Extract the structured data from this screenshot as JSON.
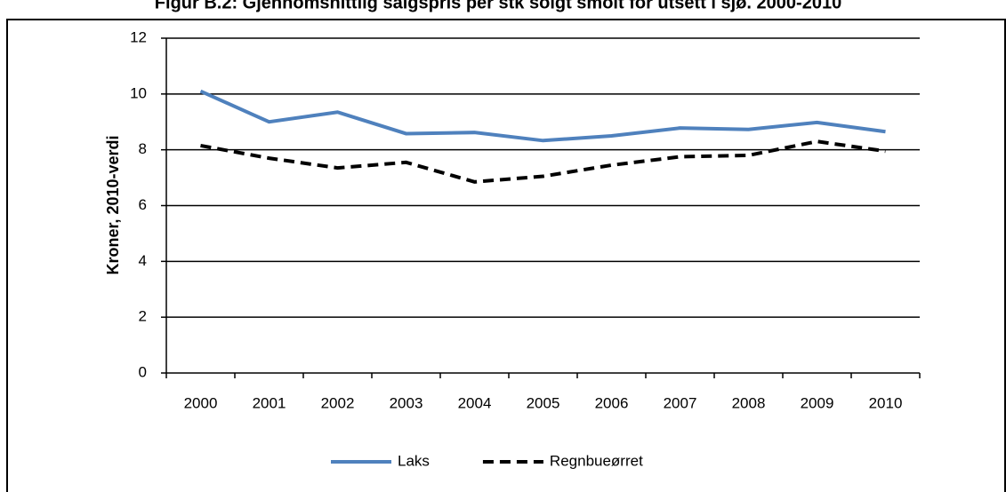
{
  "chart_data": {
    "type": "line",
    "title": "Figur B.2: Gjennomsnittlig salgspris per stk solgt smolt for utsett i sjø. 2000-2010",
    "ylabel": "Kroner, 2010-verdi",
    "categories": [
      "2000",
      "2001",
      "2002",
      "2003",
      "2004",
      "2005",
      "2006",
      "2007",
      "2008",
      "2009",
      "2010"
    ],
    "series": [
      {
        "name": "Laks",
        "color": "#4f81bd",
        "dash": false,
        "values": [
          10.1,
          9.0,
          9.35,
          8.58,
          8.62,
          8.33,
          8.5,
          8.78,
          8.73,
          8.98,
          8.65
        ]
      },
      {
        "name": "Regnbueørret",
        "color": "#000000",
        "dash": true,
        "values": [
          8.15,
          7.7,
          7.35,
          7.55,
          6.85,
          7.05,
          7.45,
          7.75,
          7.8,
          8.3,
          7.95
        ]
      }
    ],
    "ylim": [
      0,
      12
    ],
    "yticks": [
      0,
      2,
      4,
      6,
      8,
      10,
      12
    ],
    "grid": true,
    "legend": "bottom"
  }
}
